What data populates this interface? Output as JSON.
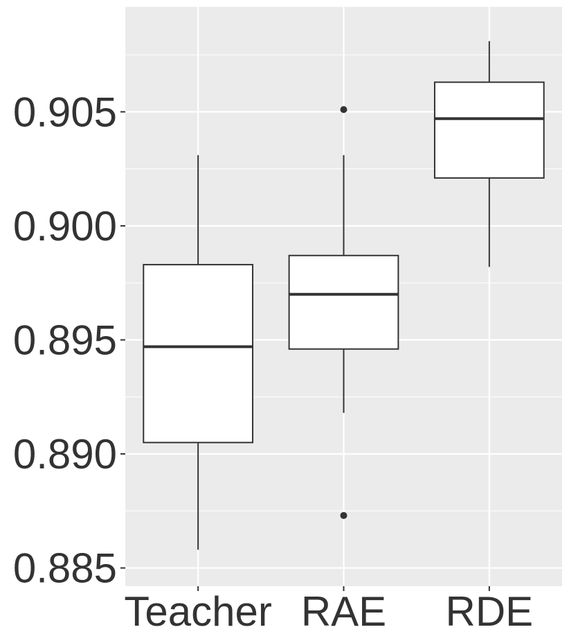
{
  "chart_data": {
    "type": "boxplot",
    "title": "",
    "xlabel": "",
    "ylabel": "",
    "categories": [
      "Teacher",
      "RAE",
      "RDE"
    ],
    "boxes": [
      {
        "category": "Teacher",
        "whisker_low": 0.8858,
        "q1": 0.8905,
        "median": 0.8947,
        "q3": 0.8983,
        "whisker_high": 0.9031,
        "outliers": []
      },
      {
        "category": "RAE",
        "whisker_low": 0.8918,
        "q1": 0.8946,
        "median": 0.897,
        "q3": 0.8987,
        "whisker_high": 0.9031,
        "outliers": [
          0.9051,
          0.8873
        ]
      },
      {
        "category": "RDE",
        "whisker_low": 0.8982,
        "q1": 0.9021,
        "median": 0.9047,
        "q3": 0.9063,
        "whisker_high": 0.9081,
        "outliers": []
      }
    ],
    "ylim": [
      0.8842,
      0.9096
    ],
    "y_ticks": [
      0.885,
      0.89,
      0.895,
      0.9,
      0.905
    ],
    "y_tick_labels": [
      "0.885",
      "0.890",
      "0.895",
      "0.900",
      "0.905"
    ],
    "y_minor_ticks": [
      0.8875,
      0.8925,
      0.8975,
      0.9025,
      0.9075
    ],
    "grid": true,
    "panel_color": "#ebebeb",
    "gridline_color": "#ffffff",
    "box_fill": "#ffffff",
    "box_stroke": "#333333",
    "text_color": "#333333"
  }
}
